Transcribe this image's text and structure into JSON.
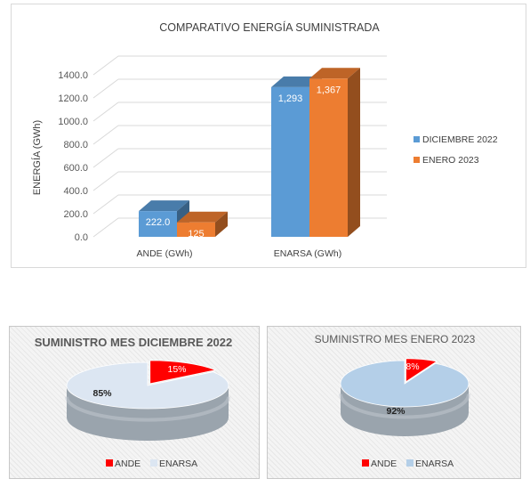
{
  "chart_data": [
    {
      "type": "bar",
      "title": "COMPARATIVO ENERGÍA SUMINISTRADA",
      "ylabel": "ENERGÍA (GWh)",
      "xlabel": "",
      "categories": [
        "ANDE (GWh)",
        "ENARSA (GWh)"
      ],
      "series": [
        {
          "name": "DICIEMBRE 2022",
          "values": [
            222.0,
            1293
          ],
          "labels": [
            "222.0",
            "1,293"
          ],
          "color": "#5b9bd5"
        },
        {
          "name": "ENERO 2023",
          "values": [
            125,
            1367
          ],
          "labels": [
            "125",
            "1,367"
          ],
          "color": "#ed7d31"
        }
      ],
      "yticks": [
        "0.0",
        "200.0",
        "400.0",
        "600.0",
        "800.0",
        "1000.0",
        "1200.0",
        "1400.0"
      ],
      "ylim": [
        0,
        1400
      ],
      "grid": true,
      "three_d": true,
      "legend_position": "right"
    },
    {
      "type": "pie",
      "title": "SUMINISTRO MES DICIEMBRE 2022",
      "slices": [
        {
          "label": "ANDE",
          "value": 15,
          "text": "15%",
          "color": "#ff0000"
        },
        {
          "label": "ENARSA",
          "value": 85,
          "text": "85%",
          "color": "#dce6f2"
        }
      ],
      "three_d": true,
      "legend_position": "bottom"
    },
    {
      "type": "pie",
      "title": "SUMINISTRO MES ENERO 2023",
      "slices": [
        {
          "label": "ANDE",
          "value": 8,
          "text": "8%",
          "color": "#ff0000"
        },
        {
          "label": "ENARSA",
          "value": 92,
          "text": "92%",
          "color": "#b4cfe8"
        }
      ],
      "three_d": true,
      "legend_position": "bottom"
    }
  ]
}
